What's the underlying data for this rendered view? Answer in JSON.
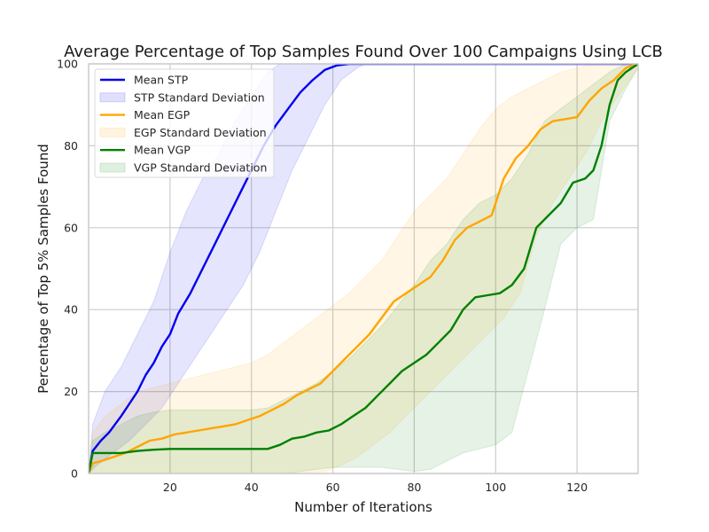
{
  "chart_data": {
    "type": "line",
    "title": "Average Percentage of Top Samples Found Over 100 Campaigns Using LCB",
    "xlabel": "Number of Iterations",
    "ylabel": "Percentage of Top 5% Samples Found",
    "xlim": [
      0,
      135
    ],
    "ylim": [
      0,
      100
    ],
    "xticks": [
      20,
      40,
      60,
      80,
      100,
      120
    ],
    "yticks": [
      0,
      20,
      40,
      60,
      80,
      100
    ],
    "grid": true,
    "legend_position": "upper-left",
    "series": [
      {
        "name": "Mean STP",
        "band_name": "STP Standard Deviation",
        "color": "#0000ee",
        "mean": [
          [
            0,
            0
          ],
          [
            1,
            5.5
          ],
          [
            3,
            8
          ],
          [
            5,
            10
          ],
          [
            8,
            14
          ],
          [
            10,
            17
          ],
          [
            12,
            20
          ],
          [
            14,
            24
          ],
          [
            16,
            27
          ],
          [
            18,
            31
          ],
          [
            20,
            34
          ],
          [
            22,
            39
          ],
          [
            25,
            44
          ],
          [
            28,
            50
          ],
          [
            31,
            56
          ],
          [
            34,
            62
          ],
          [
            37,
            68
          ],
          [
            40,
            74
          ],
          [
            43,
            80
          ],
          [
            46,
            85
          ],
          [
            49,
            89
          ],
          [
            52,
            93
          ],
          [
            55,
            96
          ],
          [
            58,
            98.5
          ],
          [
            61,
            99.6
          ],
          [
            64,
            100
          ],
          [
            135,
            100
          ]
        ],
        "upper": [
          [
            0,
            0
          ],
          [
            1,
            12
          ],
          [
            4,
            20
          ],
          [
            8,
            26
          ],
          [
            12,
            34
          ],
          [
            16,
            42
          ],
          [
            20,
            54
          ],
          [
            24,
            64
          ],
          [
            28,
            72
          ],
          [
            32,
            78
          ],
          [
            36,
            86
          ],
          [
            40,
            92
          ],
          [
            44,
            98
          ],
          [
            47,
            100
          ],
          [
            135,
            100
          ]
        ],
        "lower": [
          [
            0,
            0
          ],
          [
            2,
            2
          ],
          [
            6,
            5
          ],
          [
            10,
            8
          ],
          [
            14,
            12
          ],
          [
            18,
            16
          ],
          [
            22,
            22
          ],
          [
            26,
            28
          ],
          [
            30,
            34
          ],
          [
            34,
            40
          ],
          [
            38,
            46
          ],
          [
            42,
            54
          ],
          [
            46,
            64
          ],
          [
            50,
            74
          ],
          [
            54,
            82
          ],
          [
            58,
            90
          ],
          [
            62,
            96
          ],
          [
            66,
            99
          ],
          [
            68,
            100
          ],
          [
            135,
            100
          ]
        ]
      },
      {
        "name": "Mean EGP",
        "band_name": "EGP Standard Deviation",
        "color": "#ffa500",
        "mean": [
          [
            0,
            0
          ],
          [
            1,
            2.5
          ],
          [
            3,
            3
          ],
          [
            6,
            4
          ],
          [
            9,
            5
          ],
          [
            12,
            6.5
          ],
          [
            15,
            8
          ],
          [
            18,
            8.5
          ],
          [
            21,
            9.5
          ],
          [
            24,
            10
          ],
          [
            27,
            10.5
          ],
          [
            30,
            11
          ],
          [
            33,
            11.5
          ],
          [
            36,
            12
          ],
          [
            39,
            13
          ],
          [
            42,
            14
          ],
          [
            45,
            15.5
          ],
          [
            48,
            17
          ],
          [
            51,
            19
          ],
          [
            54,
            20.5
          ],
          [
            57,
            22
          ],
          [
            60,
            25
          ],
          [
            63,
            28
          ],
          [
            66,
            31
          ],
          [
            69,
            34
          ],
          [
            72,
            38
          ],
          [
            75,
            42
          ],
          [
            78,
            44
          ],
          [
            81,
            46
          ],
          [
            84,
            48
          ],
          [
            87,
            52
          ],
          [
            90,
            57
          ],
          [
            93,
            60
          ],
          [
            96,
            61.5
          ],
          [
            99,
            63
          ],
          [
            102,
            72
          ],
          [
            105,
            77
          ],
          [
            108,
            80
          ],
          [
            111,
            84
          ],
          [
            114,
            86
          ],
          [
            117,
            86.5
          ],
          [
            120,
            87
          ],
          [
            123,
            91
          ],
          [
            126,
            94
          ],
          [
            129,
            96
          ],
          [
            132,
            99
          ],
          [
            135,
            100
          ]
        ],
        "upper": [
          [
            0,
            0
          ],
          [
            1,
            10
          ],
          [
            4,
            14
          ],
          [
            8,
            17
          ],
          [
            12,
            20
          ],
          [
            16,
            21
          ],
          [
            20,
            22
          ],
          [
            24,
            23
          ],
          [
            28,
            24
          ],
          [
            32,
            25
          ],
          [
            36,
            26
          ],
          [
            40,
            27
          ],
          [
            44,
            29
          ],
          [
            48,
            32
          ],
          [
            52,
            35
          ],
          [
            56,
            38
          ],
          [
            60,
            41
          ],
          [
            64,
            44
          ],
          [
            68,
            48
          ],
          [
            72,
            52
          ],
          [
            76,
            58
          ],
          [
            80,
            64
          ],
          [
            84,
            68
          ],
          [
            88,
            72
          ],
          [
            92,
            78
          ],
          [
            96,
            84
          ],
          [
            100,
            89
          ],
          [
            104,
            92
          ],
          [
            108,
            94
          ],
          [
            112,
            96
          ],
          [
            116,
            98
          ],
          [
            120,
            99
          ],
          [
            124,
            100
          ],
          [
            135,
            100
          ]
        ],
        "lower": [
          [
            0,
            0
          ],
          [
            10,
            0
          ],
          [
            20,
            0
          ],
          [
            30,
            0
          ],
          [
            40,
            0
          ],
          [
            50,
            0
          ],
          [
            58,
            0.5
          ],
          [
            62,
            2
          ],
          [
            66,
            4
          ],
          [
            70,
            7
          ],
          [
            74,
            10
          ],
          [
            78,
            14
          ],
          [
            82,
            18
          ],
          [
            86,
            22
          ],
          [
            90,
            26
          ],
          [
            94,
            30
          ],
          [
            98,
            34
          ],
          [
            102,
            38
          ],
          [
            106,
            44
          ],
          [
            110,
            58
          ],
          [
            114,
            66
          ],
          [
            118,
            72
          ],
          [
            122,
            78
          ],
          [
            126,
            86
          ],
          [
            130,
            92
          ],
          [
            135,
            99
          ]
        ]
      },
      {
        "name": "Mean VGP",
        "band_name": "VGP Standard Deviation",
        "color": "#008000",
        "mean": [
          [
            0,
            0
          ],
          [
            1,
            5
          ],
          [
            4,
            5
          ],
          [
            8,
            5
          ],
          [
            12,
            5.5
          ],
          [
            16,
            5.8
          ],
          [
            20,
            6
          ],
          [
            25,
            6
          ],
          [
            30,
            6
          ],
          [
            35,
            6
          ],
          [
            40,
            6
          ],
          [
            44,
            6
          ],
          [
            47,
            7
          ],
          [
            50,
            8.5
          ],
          [
            53,
            9
          ],
          [
            56,
            10
          ],
          [
            59,
            10.5
          ],
          [
            62,
            12
          ],
          [
            65,
            14
          ],
          [
            68,
            16
          ],
          [
            71,
            19
          ],
          [
            74,
            22
          ],
          [
            77,
            25
          ],
          [
            80,
            27
          ],
          [
            83,
            29
          ],
          [
            86,
            32
          ],
          [
            89,
            35
          ],
          [
            92,
            40
          ],
          [
            95,
            43
          ],
          [
            98,
            43.5
          ],
          [
            101,
            44
          ],
          [
            104,
            46
          ],
          [
            107,
            50
          ],
          [
            110,
            60
          ],
          [
            113,
            63
          ],
          [
            116,
            66
          ],
          [
            119,
            71
          ],
          [
            122,
            72
          ],
          [
            124,
            74
          ],
          [
            126,
            80
          ],
          [
            128,
            90
          ],
          [
            130,
            96
          ],
          [
            132,
            98
          ],
          [
            135,
            100
          ]
        ],
        "upper": [
          [
            0,
            0
          ],
          [
            1,
            8
          ],
          [
            4,
            10
          ],
          [
            8,
            12
          ],
          [
            12,
            14
          ],
          [
            16,
            15
          ],
          [
            20,
            15.5
          ],
          [
            30,
            15.5
          ],
          [
            40,
            15.5
          ],
          [
            44,
            16
          ],
          [
            48,
            18
          ],
          [
            52,
            20
          ],
          [
            56,
            22
          ],
          [
            60,
            25
          ],
          [
            64,
            28
          ],
          [
            68,
            32
          ],
          [
            72,
            36
          ],
          [
            76,
            41
          ],
          [
            80,
            46
          ],
          [
            84,
            52
          ],
          [
            88,
            56
          ],
          [
            92,
            62
          ],
          [
            96,
            66
          ],
          [
            100,
            68
          ],
          [
            104,
            72
          ],
          [
            108,
            78
          ],
          [
            112,
            86
          ],
          [
            116,
            89
          ],
          [
            120,
            92
          ],
          [
            124,
            95
          ],
          [
            128,
            98
          ],
          [
            132,
            100
          ],
          [
            135,
            100
          ]
        ],
        "lower": [
          [
            0,
            0
          ],
          [
            20,
            0
          ],
          [
            30,
            0
          ],
          [
            40,
            0
          ],
          [
            48,
            0
          ],
          [
            52,
            0.5
          ],
          [
            56,
            1
          ],
          [
            60,
            1.5
          ],
          [
            64,
            1.5
          ],
          [
            68,
            1.5
          ],
          [
            72,
            1.5
          ],
          [
            76,
            1
          ],
          [
            80,
            0.5
          ],
          [
            84,
            1
          ],
          [
            88,
            3
          ],
          [
            92,
            5
          ],
          [
            96,
            6
          ],
          [
            100,
            7
          ],
          [
            104,
            10
          ],
          [
            108,
            25
          ],
          [
            112,
            40
          ],
          [
            116,
            56
          ],
          [
            120,
            60
          ],
          [
            124,
            62
          ],
          [
            128,
            86
          ],
          [
            132,
            94
          ],
          [
            135,
            99
          ]
        ]
      }
    ]
  }
}
